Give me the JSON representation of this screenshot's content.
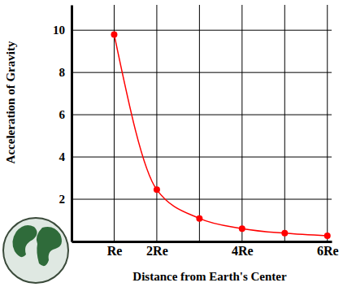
{
  "chart_data": {
    "type": "line",
    "x_label": "Distance from Earth's Center",
    "y_label": "Acceleration of Gravity",
    "x": [
      1,
      2,
      3,
      4,
      5,
      6
    ],
    "values": [
      9.8,
      2.45,
      1.09,
      0.61,
      0.39,
      0.27
    ],
    "color": "#ff0000",
    "marker": "circle",
    "xlim": [
      0,
      6.1
    ],
    "ylim": [
      0,
      11.2
    ],
    "xticks": [
      {
        "value": 1,
        "label": "Re"
      },
      {
        "value": 2,
        "label": "2Re"
      },
      {
        "value": 3,
        "label": null
      },
      {
        "value": 4,
        "label": "4Re"
      },
      {
        "value": 5,
        "label": null
      },
      {
        "value": 6,
        "label": "6Re"
      }
    ],
    "yticks": [
      2,
      4,
      6,
      8,
      10
    ],
    "grid": true
  }
}
